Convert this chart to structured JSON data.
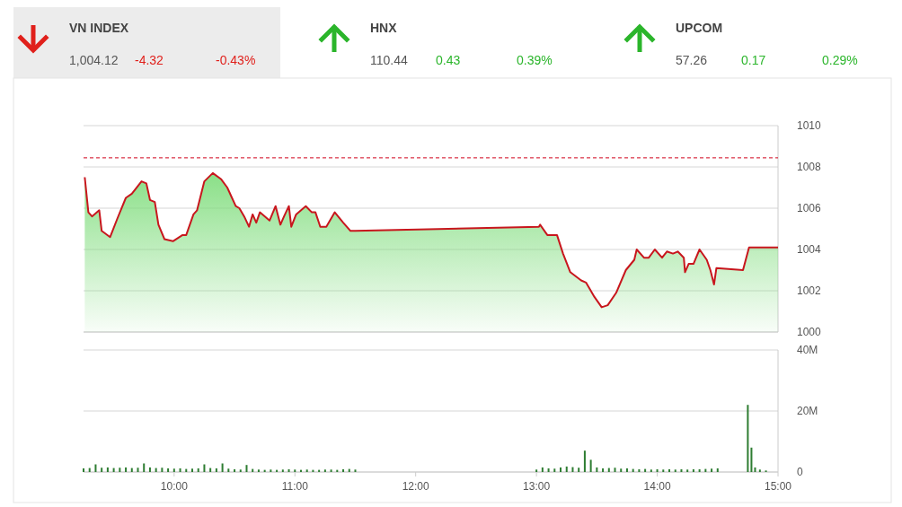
{
  "chart_data": [
    {
      "type": "other",
      "data_labels": true,
      "categories": [
        "VN INDEX",
        "HNX",
        "UPCOM"
      ],
      "annotations": [
        "1,004.12",
        "110.44",
        "57.26"
      ],
      "series": [
        {
          "values": [
            -4.32,
            0.43,
            0.17
          ]
        },
        {
          "values": [
            -0.43,
            0.39,
            0.29
          ],
          "value_labels": [
            "-0.43%",
            "0.39%",
            "0.29%"
          ]
        }
      ]
    },
    {
      "type": "area",
      "xlim": [
        9.25,
        15
      ],
      "ylim": [
        1000,
        1010
      ],
      "yticks": [
        1000,
        1002,
        1004,
        1006,
        1008,
        1010
      ],
      "grid": "y",
      "tick_labels": "y",
      "ref_lines": [
        {
          "axis": "y",
          "value": 1008.44,
          "color": "#d0021b",
          "line_style": "dashed"
        }
      ],
      "series": [
        {
          "color": "#c8161d",
          "x": [
            9.26,
            9.29,
            9.32,
            9.38,
            9.4,
            9.47,
            9.53,
            9.6,
            9.65,
            9.73,
            9.77,
            9.8,
            9.84,
            9.87,
            9.92,
            9.99,
            10.07,
            10.1,
            10.16,
            10.19,
            10.25,
            10.32,
            10.39,
            10.44,
            10.51,
            10.54,
            10.58,
            10.62,
            10.65,
            10.68,
            10.71,
            10.79,
            10.84,
            10.88,
            10.91,
            10.95,
            10.97,
            11.01,
            11.09,
            11.14,
            11.17,
            11.21,
            11.26,
            11.33,
            11.4,
            11.46,
            11.5,
            13.02,
            13.03,
            13.09,
            13.17,
            13.22,
            13.28,
            13.37,
            13.41,
            13.48,
            13.54,
            13.59,
            13.66,
            13.74,
            13.81,
            13.83,
            13.89,
            13.93,
            13.98,
            14.04,
            14.08,
            14.13,
            14.17,
            14.22,
            14.23,
            14.26,
            14.3,
            14.35,
            14.41,
            14.44,
            14.47,
            14.49,
            14.71,
            14.76,
            15
          ],
          "values": [
            1007.5,
            1005.8,
            1005.6,
            1005.9,
            1004.9,
            1004.6,
            1005.5,
            1006.5,
            1006.7,
            1007.3,
            1007.2,
            1006.4,
            1006.3,
            1005.2,
            1004.5,
            1004.4,
            1004.7,
            1004.7,
            1005.7,
            1005.9,
            1007.3,
            1007.7,
            1007.4,
            1007,
            1006.1,
            1006,
            1005.6,
            1005.1,
            1005.7,
            1005.3,
            1005.8,
            1005.4,
            1006.1,
            1005.2,
            1005.6,
            1006.1,
            1005.1,
            1005.7,
            1006.1,
            1005.8,
            1005.8,
            1005.1,
            1005.1,
            1005.8,
            1005.3,
            1004.9,
            1004.9,
            1005.1,
            1005.2,
            1004.7,
            1004.7,
            1003.8,
            1002.9,
            1002.5,
            1002.4,
            1001.7,
            1001.2,
            1001.3,
            1001.9,
            1003,
            1003.5,
            1004,
            1003.6,
            1003.6,
            1004,
            1003.6,
            1003.9,
            1003.8,
            1003.9,
            1003.6,
            1002.9,
            1003.3,
            1003.3,
            1004,
            1003.5,
            1003,
            1002.3,
            1003.1,
            1003,
            1004.1,
            1004.1
          ]
        }
      ]
    },
    {
      "type": "bar",
      "xlim": [
        9.25,
        15
      ],
      "xticks": [
        {
          "value": 10,
          "label": "10:00"
        },
        {
          "value": 11,
          "label": "11:00"
        },
        {
          "value": 12,
          "label": "12:00"
        },
        {
          "value": 13,
          "label": "13:00"
        },
        {
          "value": 14,
          "label": "14:00"
        },
        {
          "value": 15,
          "label": "15:00"
        }
      ],
      "ylim": [
        0,
        40
      ],
      "yticks": [
        0,
        {
          "value": 20,
          "label": "20M"
        },
        {
          "value": 40,
          "label": "40M"
        }
      ],
      "grid": "y",
      "series": [
        {
          "color": "#2e7d32",
          "x": [
            9.25,
            9.3,
            9.35,
            9.4,
            9.45,
            9.5,
            9.55,
            9.6,
            9.65,
            9.7,
            9.75,
            9.8,
            9.85,
            9.9,
            9.95,
            10,
            10.05,
            10.1,
            10.15,
            10.2,
            10.25,
            10.3,
            10.35,
            10.4,
            10.45,
            10.5,
            10.55,
            10.6,
            10.65,
            10.7,
            10.75,
            10.8,
            10.85,
            10.9,
            10.95,
            11,
            11.05,
            11.1,
            11.15,
            11.2,
            11.25,
            11.3,
            11.35,
            11.4,
            11.45,
            11.5,
            13,
            13.05,
            13.1,
            13.15,
            13.2,
            13.25,
            13.3,
            13.35,
            13.4,
            13.45,
            13.5,
            13.55,
            13.6,
            13.65,
            13.7,
            13.75,
            13.8,
            13.85,
            13.9,
            13.95,
            14,
            14.05,
            14.1,
            14.15,
            14.2,
            14.25,
            14.3,
            14.35,
            14.4,
            14.45,
            14.5,
            14.75,
            14.78,
            14.81,
            14.85,
            14.9
          ],
          "values": [
            1.2,
            1.3,
            2.5,
            1.4,
            1.5,
            1.3,
            1.4,
            1.5,
            1.3,
            1.4,
            2.8,
            1.5,
            1.3,
            1.4,
            1.2,
            1.1,
            1.2,
            1,
            1.1,
            1.2,
            2.5,
            1.3,
            1.2,
            2.8,
            1.1,
            0.9,
            0.8,
            2.3,
            1,
            0.8,
            0.7,
            0.8,
            0.7,
            0.8,
            0.9,
            0.8,
            0.7,
            0.8,
            0.7,
            0.7,
            0.8,
            0.8,
            0.7,
            0.9,
            1,
            0.8,
            0.8,
            1.5,
            1.2,
            1.1,
            1.5,
            1.8,
            1.6,
            1.4,
            7,
            4,
            1.5,
            1.2,
            1.3,
            1.4,
            1.1,
            1.2,
            1,
            0.9,
            1,
            0.8,
            0.9,
            0.8,
            0.9,
            0.8,
            0.9,
            0.8,
            0.9,
            0.9,
            1,
            1.1,
            1.2,
            22,
            8,
            1.5,
            0.8,
            0.5
          ]
        }
      ]
    }
  ]
}
